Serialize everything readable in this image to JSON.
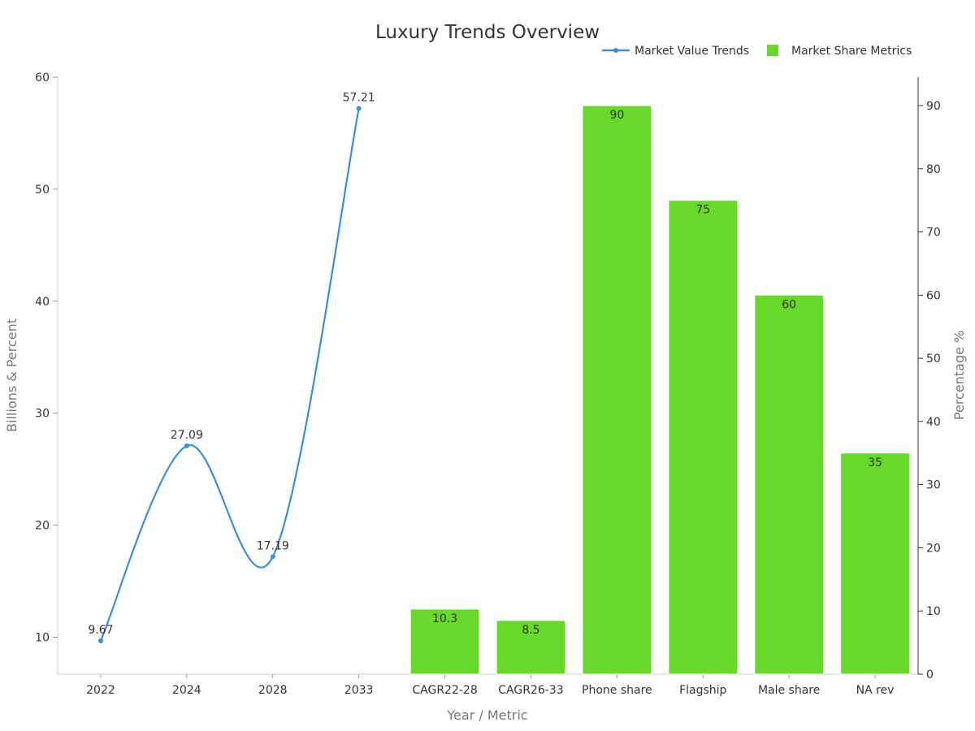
{
  "chart_data": {
    "type": "bar",
    "title": "Luxury Trends Overview",
    "xlabel": "Year / Metric",
    "ylabel": "Billions & Percent",
    "y2label": "Percentage %",
    "categories": [
      "2022",
      "2024",
      "2028",
      "2033",
      "CAGR22-28",
      "CAGR26-33",
      "Phone share",
      "Flagship",
      "Male share",
      "NA rev"
    ],
    "ylim": [
      6.7,
      60
    ],
    "y_ticks": [
      10,
      20,
      30,
      40,
      50,
      60
    ],
    "y2lim": [
      0,
      94.5
    ],
    "y2_ticks": [
      0,
      10,
      20,
      30,
      40,
      50,
      60,
      70,
      80,
      90
    ],
    "legend_position": "top-right",
    "grid": false,
    "series": [
      {
        "name": "Market Value Trends",
        "type": "line",
        "axis": "left",
        "smooth": true,
        "color": "#3a8fd9",
        "x": [
          "2022",
          "2024",
          "2028",
          "2033"
        ],
        "values": [
          9.67,
          27.09,
          17.19,
          57.21
        ],
        "labels": [
          "9.67",
          "27.09",
          "17.19",
          "57.21"
        ]
      },
      {
        "name": "Market Share Metrics",
        "type": "bar",
        "axis": "right",
        "color": "#66d929",
        "x": [
          "CAGR22-28",
          "CAGR26-33",
          "Phone share",
          "Flagship",
          "Male share",
          "NA rev"
        ],
        "values": [
          10.3,
          8.5,
          90,
          75,
          60,
          35
        ],
        "labels": [
          "10.3",
          "8.5",
          "90",
          "75",
          "60",
          "35"
        ]
      }
    ]
  }
}
